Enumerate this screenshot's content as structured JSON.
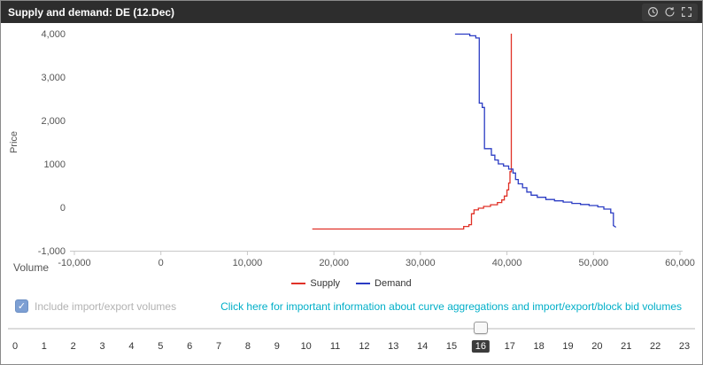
{
  "header": {
    "title": "Supply and demand: DE (12.Dec)",
    "toolbar_icons": [
      "clock-icon",
      "refresh-icon",
      "fullscreen-icon"
    ]
  },
  "chart_data": {
    "type": "line",
    "title": "",
    "xlabel": "Volume",
    "ylabel": "Price",
    "xlim": [
      -10000,
      60000
    ],
    "ylim": [
      -1000,
      4000
    ],
    "grid": false,
    "legend_position": "bottom-center",
    "x_ticks": [
      {
        "value": -10000,
        "label": "-10,000"
      },
      {
        "value": 0,
        "label": "0"
      },
      {
        "value": 10000,
        "label": "10,000"
      },
      {
        "value": 20000,
        "label": "20,000"
      },
      {
        "value": 30000,
        "label": "30,000"
      },
      {
        "value": 40000,
        "label": "40,000"
      },
      {
        "value": 50000,
        "label": "50,000"
      },
      {
        "value": 60000,
        "label": "60,000"
      }
    ],
    "y_ticks": [
      {
        "value": 4000,
        "label": "4,000"
      },
      {
        "value": 3000,
        "label": "3,000"
      },
      {
        "value": 2000,
        "label": "2,000"
      },
      {
        "value": 1000,
        "label": "1000"
      },
      {
        "value": 0,
        "label": "0"
      },
      {
        "value": -1000,
        "label": "-1,000"
      }
    ],
    "series": [
      {
        "name": "Supply",
        "color": "#e03127",
        "points": [
          [
            17500,
            -500
          ],
          [
            35000,
            -500
          ],
          [
            35000,
            -440
          ],
          [
            35600,
            -440
          ],
          [
            35600,
            -400
          ],
          [
            35900,
            -400
          ],
          [
            35900,
            -150
          ],
          [
            36200,
            -150
          ],
          [
            36200,
            -60
          ],
          [
            36700,
            -60
          ],
          [
            36700,
            -20
          ],
          [
            37300,
            -20
          ],
          [
            37300,
            20
          ],
          [
            38100,
            20
          ],
          [
            38100,
            60
          ],
          [
            38900,
            60
          ],
          [
            38900,
            110
          ],
          [
            39400,
            110
          ],
          [
            39400,
            170
          ],
          [
            39700,
            170
          ],
          [
            39700,
            260
          ],
          [
            40000,
            260
          ],
          [
            40000,
            400
          ],
          [
            40200,
            400
          ],
          [
            40200,
            560
          ],
          [
            40350,
            560
          ],
          [
            40350,
            820
          ],
          [
            40500,
            820
          ],
          [
            40500,
            4000
          ]
        ]
      },
      {
        "name": "Demand",
        "color": "#2b3cc4",
        "points": [
          [
            34000,
            3990
          ],
          [
            35700,
            3990
          ],
          [
            35700,
            3950
          ],
          [
            36400,
            3950
          ],
          [
            36400,
            3900
          ],
          [
            36800,
            3900
          ],
          [
            36800,
            2400
          ],
          [
            37150,
            2400
          ],
          [
            37150,
            2300
          ],
          [
            37400,
            2300
          ],
          [
            37400,
            1350
          ],
          [
            38200,
            1350
          ],
          [
            38200,
            1200
          ],
          [
            38600,
            1200
          ],
          [
            38600,
            1090
          ],
          [
            39000,
            1090
          ],
          [
            39000,
            1000
          ],
          [
            39600,
            1000
          ],
          [
            39600,
            950
          ],
          [
            40200,
            950
          ],
          [
            40200,
            880
          ],
          [
            40700,
            880
          ],
          [
            40700,
            790
          ],
          [
            41000,
            790
          ],
          [
            41000,
            640
          ],
          [
            41300,
            640
          ],
          [
            41300,
            540
          ],
          [
            41800,
            540
          ],
          [
            41800,
            450
          ],
          [
            42300,
            450
          ],
          [
            42300,
            350
          ],
          [
            42800,
            350
          ],
          [
            42800,
            280
          ],
          [
            43500,
            280
          ],
          [
            43500,
            230
          ],
          [
            44500,
            230
          ],
          [
            44500,
            180
          ],
          [
            45500,
            180
          ],
          [
            45500,
            150
          ],
          [
            46500,
            150
          ],
          [
            46500,
            120
          ],
          [
            47500,
            120
          ],
          [
            47500,
            90
          ],
          [
            48500,
            90
          ],
          [
            48500,
            65
          ],
          [
            49500,
            65
          ],
          [
            49500,
            40
          ],
          [
            50500,
            40
          ],
          [
            50500,
            10
          ],
          [
            51200,
            10
          ],
          [
            51200,
            -40
          ],
          [
            52000,
            -40
          ],
          [
            52000,
            -130
          ],
          [
            52300,
            -130
          ],
          [
            52300,
            -420
          ],
          [
            52600,
            -460
          ]
        ]
      }
    ]
  },
  "controls": {
    "checkbox_label": "Include import/export volumes",
    "checkbox_checked": true,
    "info_link": "Click here for important information about curve aggregations and import/export/block bid volumes"
  },
  "timeline": {
    "hours": [
      "0",
      "1",
      "2",
      "3",
      "4",
      "5",
      "6",
      "7",
      "8",
      "9",
      "10",
      "11",
      "12",
      "13",
      "14",
      "15",
      "16",
      "17",
      "18",
      "19",
      "20",
      "21",
      "22",
      "23"
    ],
    "selected_index": 16,
    "selected_label": "16"
  }
}
